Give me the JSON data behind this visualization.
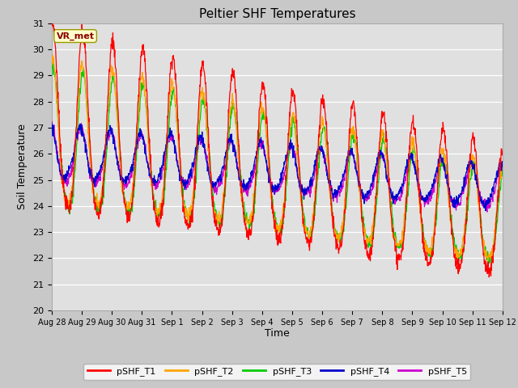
{
  "title": "Peltier SHF Temperatures",
  "xlabel": "Time",
  "ylabel": "Soil Temperature",
  "annotation": "VR_met",
  "ylim": [
    20.0,
    31.0
  ],
  "yticks": [
    20.0,
    21.0,
    22.0,
    23.0,
    24.0,
    25.0,
    26.0,
    27.0,
    28.0,
    29.0,
    30.0,
    31.0
  ],
  "xtick_labels": [
    "Aug 28",
    "Aug 29",
    "Aug 30",
    "Aug 31",
    "Sep 1",
    "Sep 2",
    "Sep 3",
    "Sep 4",
    "Sep 5",
    "Sep 6",
    "Sep 7",
    "Sep 8",
    "Sep 9",
    "Sep 10",
    "Sep 11",
    "Sep 12"
  ],
  "colors": {
    "T1": "#ff0000",
    "T2": "#ffa500",
    "T3": "#00cc00",
    "T4": "#0000cc",
    "T5": "#cc00cc"
  },
  "legend_labels": [
    "pSHF_T1",
    "pSHF_T2",
    "pSHF_T3",
    "pSHF_T4",
    "pSHF_T5"
  ],
  "fig_bg_color": "#c8c8c8",
  "plot_bg_color": "#e0e0e0",
  "title_fontsize": 11,
  "axis_label_fontsize": 9,
  "tick_fontsize": 8
}
